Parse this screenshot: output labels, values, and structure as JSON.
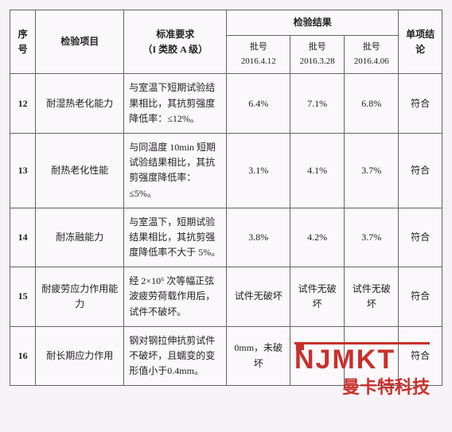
{
  "header": {
    "seq": "序号",
    "item": "检验项目",
    "req": "标准要求\n（I 类胶 A 级）",
    "resultGroup": "检验结果",
    "conclusion": "单项结论",
    "batches": [
      "批号\n2016.4.12",
      "批号\n2016.3.28",
      "批号\n2016.4.06"
    ]
  },
  "rows": [
    {
      "seq": "12",
      "item": "耐湿热老化能力",
      "req": "与室温下短期试验结果相比，其抗剪强度降低率：≤12%。",
      "r1": "6.4%",
      "r2": "7.1%",
      "r3": "6.8%",
      "concl": "符合"
    },
    {
      "seq": "13",
      "item": "耐热老化性能",
      "req": "与同温度 10min 短期试验结果相比，其抗剪强度降低率：≤5%。",
      "r1": "3.1%",
      "r2": "4.1%",
      "r3": "3.7%",
      "concl": "符合"
    },
    {
      "seq": "14",
      "item": "耐冻融能力",
      "req": "与室温下，短期试验结果相比，其抗剪强度降低率不大于 5%。",
      "r1": "3.8%",
      "r2": "4.2%",
      "r3": "3.7%",
      "concl": "符合"
    },
    {
      "seq": "15",
      "item": "耐疲劳应力作用能力",
      "req": "经 2×10⁶ 次等幅正弦波疲劳荷载作用后，试件不破坏。",
      "r1": "试件无破坏",
      "r2": "试件无破坏",
      "r3": "试件无破坏",
      "concl": "符合"
    },
    {
      "seq": "16",
      "item": "耐长期应力作用",
      "req": "钢对钢拉伸抗剪试件不破坏，且蠕变的变形值小于0.4mm。",
      "r1": "0mm，未破坏",
      "r2": "",
      "r3": "",
      "concl": "符合"
    }
  ],
  "watermark": {
    "logo": "NJMKT",
    "text": "曼卡特科技"
  }
}
